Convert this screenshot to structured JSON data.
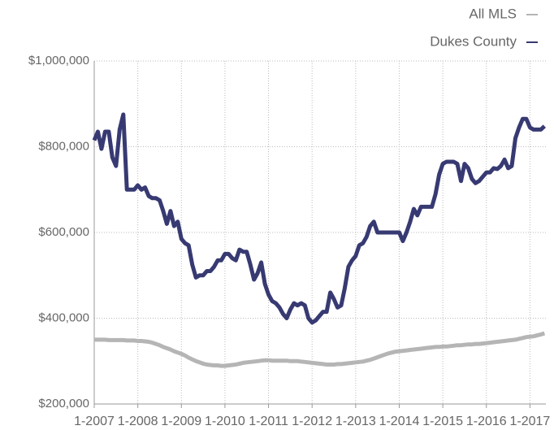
{
  "chart_data": {
    "type": "line",
    "categories": [
      "1-2007",
      null,
      null,
      null,
      null,
      null,
      null,
      null,
      null,
      null,
      null,
      null,
      "1-2008",
      null,
      null,
      null,
      null,
      null,
      null,
      null,
      null,
      null,
      null,
      null,
      "1-2009",
      null,
      null,
      null,
      null,
      null,
      null,
      null,
      null,
      null,
      null,
      null,
      "1-2010",
      null,
      null,
      null,
      null,
      null,
      null,
      null,
      null,
      null,
      null,
      null,
      "1-2011",
      null,
      null,
      null,
      null,
      null,
      null,
      null,
      null,
      null,
      null,
      null,
      "1-2012",
      null,
      null,
      null,
      null,
      null,
      null,
      null,
      null,
      null,
      null,
      null,
      "1-2013",
      null,
      null,
      null,
      null,
      null,
      null,
      null,
      null,
      null,
      null,
      null,
      "1-2014",
      null,
      null,
      null,
      null,
      null,
      null,
      null,
      null,
      null,
      null,
      null,
      "1-2015",
      null,
      null,
      null,
      null,
      null,
      null,
      null,
      null,
      null,
      null,
      null,
      "1-2016",
      null,
      null,
      null,
      null,
      null,
      null,
      null,
      null,
      null,
      null,
      null,
      "1-2017",
      null,
      null,
      null,
      null
    ],
    "series": [
      {
        "name": "All MLS",
        "color": "#b5b5b5",
        "values": [
          350000,
          350000,
          350000,
          350000,
          349000,
          349000,
          349000,
          349000,
          349000,
          348000,
          348000,
          348000,
          347000,
          347000,
          346000,
          345000,
          343000,
          340000,
          337000,
          333000,
          330000,
          327000,
          323000,
          320000,
          317000,
          313000,
          308000,
          304000,
          300000,
          297000,
          294000,
          292000,
          291000,
          290000,
          290000,
          289000,
          289000,
          290000,
          291000,
          292000,
          294000,
          296000,
          297000,
          298000,
          299000,
          300000,
          301000,
          302000,
          302000,
          301000,
          301000,
          301000,
          301000,
          301000,
          300000,
          300000,
          300000,
          299000,
          298000,
          297000,
          296000,
          295000,
          294000,
          293000,
          292000,
          292000,
          292000,
          293000,
          293000,
          294000,
          295000,
          296000,
          297000,
          298000,
          299000,
          301000,
          303000,
          306000,
          309000,
          312000,
          315000,
          318000,
          320000,
          322000,
          323000,
          324000,
          325000,
          326000,
          327000,
          328000,
          329000,
          330000,
          331000,
          332000,
          333000,
          333000,
          334000,
          334000,
          335000,
          336000,
          337000,
          337000,
          338000,
          339000,
          339000,
          340000,
          340000,
          341000,
          342000,
          343000,
          344000,
          345000,
          346000,
          347000,
          348000,
          349000,
          350000,
          352000,
          354000,
          356000,
          357000,
          358000,
          360000,
          362000,
          365000
        ]
      },
      {
        "name": "Dukes County",
        "color": "#373a72",
        "values": [
          815000,
          835000,
          795000,
          835000,
          835000,
          775000,
          755000,
          840000,
          875000,
          700000,
          700000,
          700000,
          710000,
          700000,
          705000,
          685000,
          680000,
          680000,
          675000,
          650000,
          620000,
          650000,
          615000,
          625000,
          585000,
          575000,
          570000,
          525000,
          495000,
          500000,
          500000,
          510000,
          510000,
          520000,
          535000,
          535000,
          550000,
          550000,
          540000,
          535000,
          560000,
          555000,
          555000,
          525000,
          490000,
          505000,
          530000,
          480000,
          455000,
          440000,
          435000,
          425000,
          410000,
          400000,
          420000,
          435000,
          430000,
          435000,
          430000,
          400000,
          390000,
          395000,
          405000,
          415000,
          415000,
          460000,
          445000,
          425000,
          430000,
          470000,
          520000,
          535000,
          545000,
          570000,
          575000,
          590000,
          615000,
          625000,
          600000,
          600000,
          600000,
          600000,
          600000,
          600000,
          600000,
          580000,
          600000,
          625000,
          655000,
          640000,
          660000,
          660000,
          660000,
          660000,
          690000,
          735000,
          760000,
          765000,
          765000,
          765000,
          760000,
          720000,
          760000,
          750000,
          725000,
          715000,
          720000,
          730000,
          740000,
          740000,
          750000,
          748000,
          755000,
          770000,
          750000,
          755000,
          820000,
          845000,
          865000,
          865000,
          845000,
          840000,
          840000,
          840000,
          848000
        ]
      }
    ],
    "ylim": [
      200000,
      1000000
    ],
    "yticks": [
      {
        "value": 200000,
        "label": "$200,000"
      },
      {
        "value": 400000,
        "label": "$400,000"
      },
      {
        "value": 600000,
        "label": "$600,000"
      },
      {
        "value": 800000,
        "label": "$800,000"
      },
      {
        "value": 1000000,
        "label": "$1,000,000"
      }
    ],
    "grid": true
  }
}
